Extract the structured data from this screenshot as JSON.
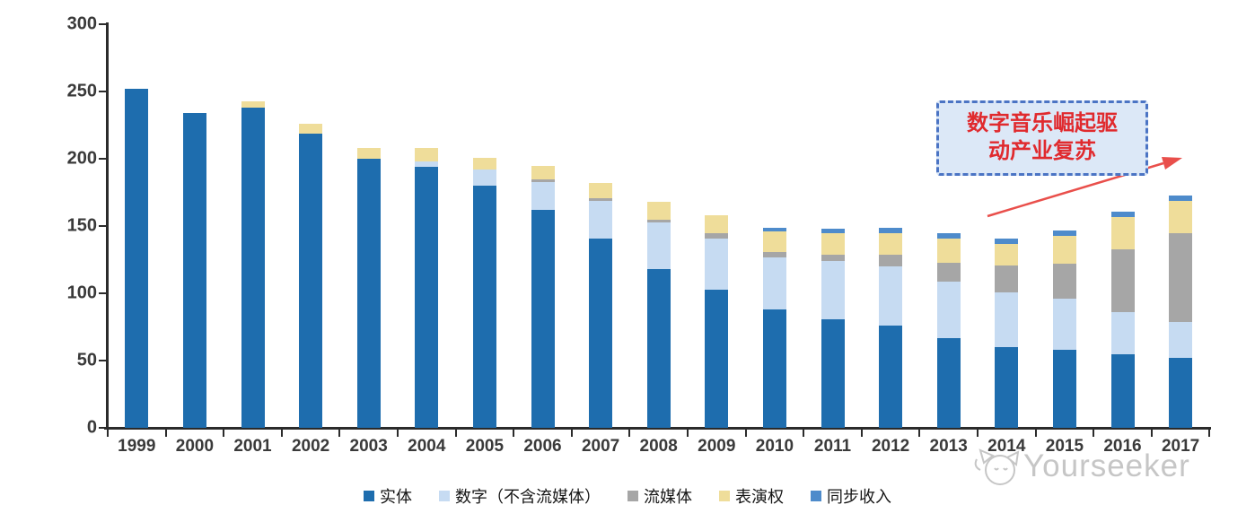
{
  "chart_data": {
    "type": "bar",
    "stacked": true,
    "title": "",
    "xlabel": "",
    "ylabel": "",
    "categories": [
      "1999",
      "2000",
      "2001",
      "2002",
      "2003",
      "2004",
      "2005",
      "2006",
      "2007",
      "2008",
      "2009",
      "2010",
      "2011",
      "2012",
      "2013",
      "2014",
      "2015",
      "2016",
      "2017"
    ],
    "series": [
      {
        "name": "实体",
        "color": "#1E6DAE",
        "values": [
          252,
          234,
          238,
          219,
          200,
          194,
          180,
          162,
          141,
          118,
          103,
          88,
          81,
          76,
          67,
          60,
          58,
          55,
          52
        ]
      },
      {
        "name": "数字（不含流媒体）",
        "color": "#C6DBF2",
        "values": [
          0,
          0,
          0,
          0,
          0,
          4,
          12,
          21,
          28,
          35,
          38,
          39,
          43,
          44,
          42,
          41,
          38,
          31,
          27
        ]
      },
      {
        "name": "流媒体",
        "color": "#A6A6A6",
        "values": [
          0,
          0,
          0,
          0,
          0,
          0,
          0,
          2,
          2,
          2,
          4,
          4,
          5,
          9,
          14,
          20,
          26,
          47,
          66
        ]
      },
      {
        "name": "表演权",
        "color": "#EFDD9A",
        "values": [
          0,
          0,
          5,
          7,
          8,
          10,
          9,
          10,
          11,
          13,
          13,
          15,
          16,
          16,
          18,
          16,
          21,
          24,
          24
        ]
      },
      {
        "name": "同步收入",
        "color": "#4E8BCB",
        "values": [
          0,
          0,
          0,
          0,
          0,
          0,
          0,
          0,
          0,
          0,
          0,
          3,
          3,
          4,
          4,
          4,
          4,
          4,
          4
        ]
      }
    ],
    "ylim": [
      0,
      300
    ],
    "yticks": [
      0,
      50,
      100,
      150,
      200,
      250,
      300
    ],
    "grid": false,
    "legend_position": "bottom",
    "axis_color": "#2B2B2B",
    "tick_label_color": "#3A3A3A"
  },
  "annotation": {
    "line1": "数字音乐崛起驱",
    "line2": "动产业复苏",
    "text_color": "#E02A2E",
    "border_color": "#4B74C4",
    "fill_color": "#DCE8F7",
    "arrow_color": "#E94F4B"
  },
  "watermark": {
    "label": "Yourseeker",
    "color": "#C6C6C6",
    "logo_icon": "cat-logo-icon"
  }
}
